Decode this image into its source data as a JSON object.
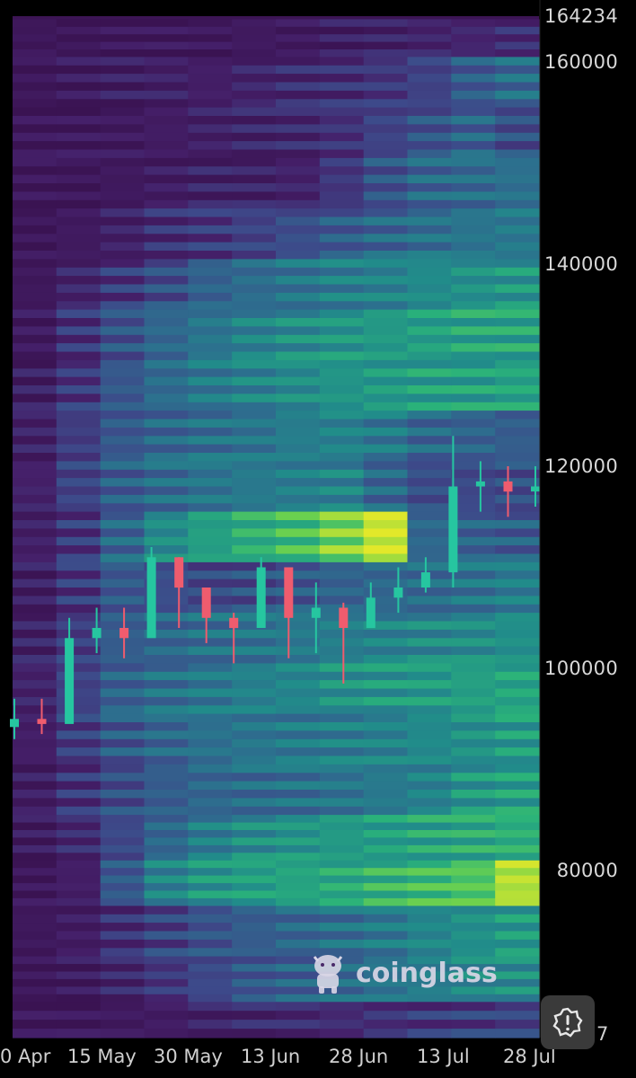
{
  "chart_data": {
    "type": "heatmap",
    "title": "",
    "xlabel": "",
    "ylabel": "",
    "x_tick_labels": [
      "0 Apr",
      "15 May",
      "30 May",
      "13 Jun",
      "28 Jun",
      "13 Jul",
      "28 Jul"
    ],
    "y_tick_labels": [
      "164234",
      "160000",
      "140000",
      "120000",
      "100000",
      "80000"
    ],
    "y_edge_fragment": "7",
    "ylim": [
      63000,
      164234
    ],
    "colorscale": [
      "#3a1352",
      "#45206a",
      "#3d4a8a",
      "#2d6e8e",
      "#218c8a",
      "#2ab27a",
      "#6ed24d",
      "#e2e82a"
    ],
    "heat_bands": [
      {
        "price": 163000,
        "intensity": [
          0.05,
          0.05,
          0.06,
          0.06,
          0.07,
          0.08,
          0.08,
          0.1,
          0.12,
          0.14,
          0.16,
          0.18
        ]
      },
      {
        "price": 158000,
        "intensity": [
          0.05,
          0.08,
          0.1,
          0.12,
          0.12,
          0.14,
          0.16,
          0.18,
          0.22,
          0.26,
          0.35,
          0.42
        ]
      },
      {
        "price": 153000,
        "intensity": [
          0.05,
          0.06,
          0.08,
          0.1,
          0.12,
          0.13,
          0.15,
          0.2,
          0.26,
          0.32,
          0.38,
          0.3
        ]
      },
      {
        "price": 148000,
        "intensity": [
          0.04,
          0.05,
          0.07,
          0.1,
          0.12,
          0.12,
          0.14,
          0.22,
          0.32,
          0.4,
          0.42,
          0.44
        ]
      },
      {
        "price": 143000,
        "intensity": [
          0.05,
          0.08,
          0.12,
          0.18,
          0.22,
          0.26,
          0.3,
          0.35,
          0.4,
          0.44,
          0.46,
          0.48
        ]
      },
      {
        "price": 138000,
        "intensity": [
          0.06,
          0.14,
          0.22,
          0.3,
          0.38,
          0.42,
          0.46,
          0.5,
          0.52,
          0.56,
          0.58,
          0.6
        ]
      },
      {
        "price": 133000,
        "intensity": [
          0.08,
          0.2,
          0.32,
          0.4,
          0.46,
          0.52,
          0.56,
          0.6,
          0.62,
          0.64,
          0.66,
          0.66
        ]
      },
      {
        "price": 128000,
        "intensity": [
          0.1,
          0.22,
          0.34,
          0.42,
          0.48,
          0.52,
          0.56,
          0.6,
          0.62,
          0.64,
          0.64,
          0.66
        ]
      },
      {
        "price": 123000,
        "intensity": [
          0.12,
          0.24,
          0.34,
          0.4,
          0.44,
          0.46,
          0.5,
          0.52,
          0.48,
          0.4,
          0.38,
          0.36
        ]
      },
      {
        "price": 118000,
        "intensity": [
          0.14,
          0.26,
          0.36,
          0.42,
          0.46,
          0.48,
          0.5,
          0.52,
          0.4,
          0.3,
          0.28,
          0.3
        ]
      },
      {
        "price": 113000,
        "intensity": [
          0.12,
          0.22,
          0.4,
          0.56,
          0.64,
          0.7,
          0.76,
          0.86,
          0.98,
          0.4,
          0.38,
          0.36
        ]
      },
      {
        "price": 108000,
        "intensity": [
          0.1,
          0.22,
          0.34,
          0.3,
          0.28,
          0.3,
          0.34,
          0.38,
          0.4,
          0.42,
          0.46,
          0.5
        ]
      },
      {
        "price": 103000,
        "intensity": [
          0.12,
          0.24,
          0.36,
          0.4,
          0.44,
          0.46,
          0.48,
          0.5,
          0.52,
          0.54,
          0.56,
          0.58
        ]
      },
      {
        "price": 98000,
        "intensity": [
          0.14,
          0.26,
          0.38,
          0.44,
          0.48,
          0.52,
          0.54,
          0.58,
          0.6,
          0.62,
          0.64,
          0.66
        ]
      },
      {
        "price": 93000,
        "intensity": [
          0.12,
          0.24,
          0.34,
          0.4,
          0.44,
          0.46,
          0.48,
          0.5,
          0.52,
          0.56,
          0.58,
          0.62
        ]
      },
      {
        "price": 88000,
        "intensity": [
          0.1,
          0.2,
          0.3,
          0.36,
          0.4,
          0.42,
          0.44,
          0.46,
          0.48,
          0.52,
          0.6,
          0.64
        ]
      },
      {
        "price": 83000,
        "intensity": [
          0.08,
          0.16,
          0.28,
          0.4,
          0.5,
          0.56,
          0.6,
          0.62,
          0.64,
          0.66,
          0.68,
          0.7
        ]
      },
      {
        "price": 79000,
        "intensity": [
          0.06,
          0.12,
          0.34,
          0.52,
          0.6,
          0.64,
          0.66,
          0.68,
          0.72,
          0.76,
          0.8,
          0.94
        ]
      },
      {
        "price": 74000,
        "intensity": [
          0.06,
          0.1,
          0.18,
          0.26,
          0.32,
          0.36,
          0.4,
          0.44,
          0.48,
          0.54,
          0.58,
          0.62
        ]
      },
      {
        "price": 69000,
        "intensity": [
          0.05,
          0.08,
          0.14,
          0.22,
          0.28,
          0.34,
          0.38,
          0.42,
          0.46,
          0.5,
          0.54,
          0.56
        ]
      },
      {
        "price": 65000,
        "intensity": [
          0.05,
          0.06,
          0.08,
          0.1,
          0.12,
          0.14,
          0.16,
          0.18,
          0.2,
          0.22,
          0.24,
          0.26
        ]
      }
    ],
    "price_series": {
      "name": "",
      "x": [
        "26 Apr",
        "1 May",
        "6 May",
        "11 May",
        "16 May",
        "21 May",
        "26 May",
        "31 May",
        "5 Jun",
        "10 Jun",
        "15 Jun",
        "20 Jun",
        "25 Jun",
        "30 Jun",
        "5 Jul",
        "10 Jul",
        "15 Jul",
        "20 Jul",
        "25 Jul",
        "30 Jul"
      ],
      "close": [
        95000,
        94500,
        103000,
        104000,
        103000,
        111000,
        108000,
        105000,
        104000,
        110000,
        105000,
        106000,
        104000,
        107000,
        108000,
        109500,
        118000,
        118500,
        117500,
        118000
      ],
      "high": [
        97000,
        97000,
        105000,
        106000,
        106000,
        112000,
        111000,
        108000,
        105500,
        111000,
        108000,
        108500,
        106500,
        108500,
        110000,
        111000,
        123000,
        120500,
        120000,
        120000
      ],
      "low": [
        93000,
        93500,
        100000,
        101500,
        101000,
        105000,
        104000,
        102500,
        100500,
        104000,
        101000,
        101500,
        98500,
        104500,
        105500,
        107500,
        108000,
        115500,
        115000,
        116000
      ],
      "up_color": "#26c6a0",
      "down_color": "#ef5c6e"
    }
  },
  "watermark": {
    "text": "coinglass",
    "logo_icon": "coinglass-cow-icon"
  },
  "alert_button": {
    "icon": "alert-badge-icon"
  }
}
